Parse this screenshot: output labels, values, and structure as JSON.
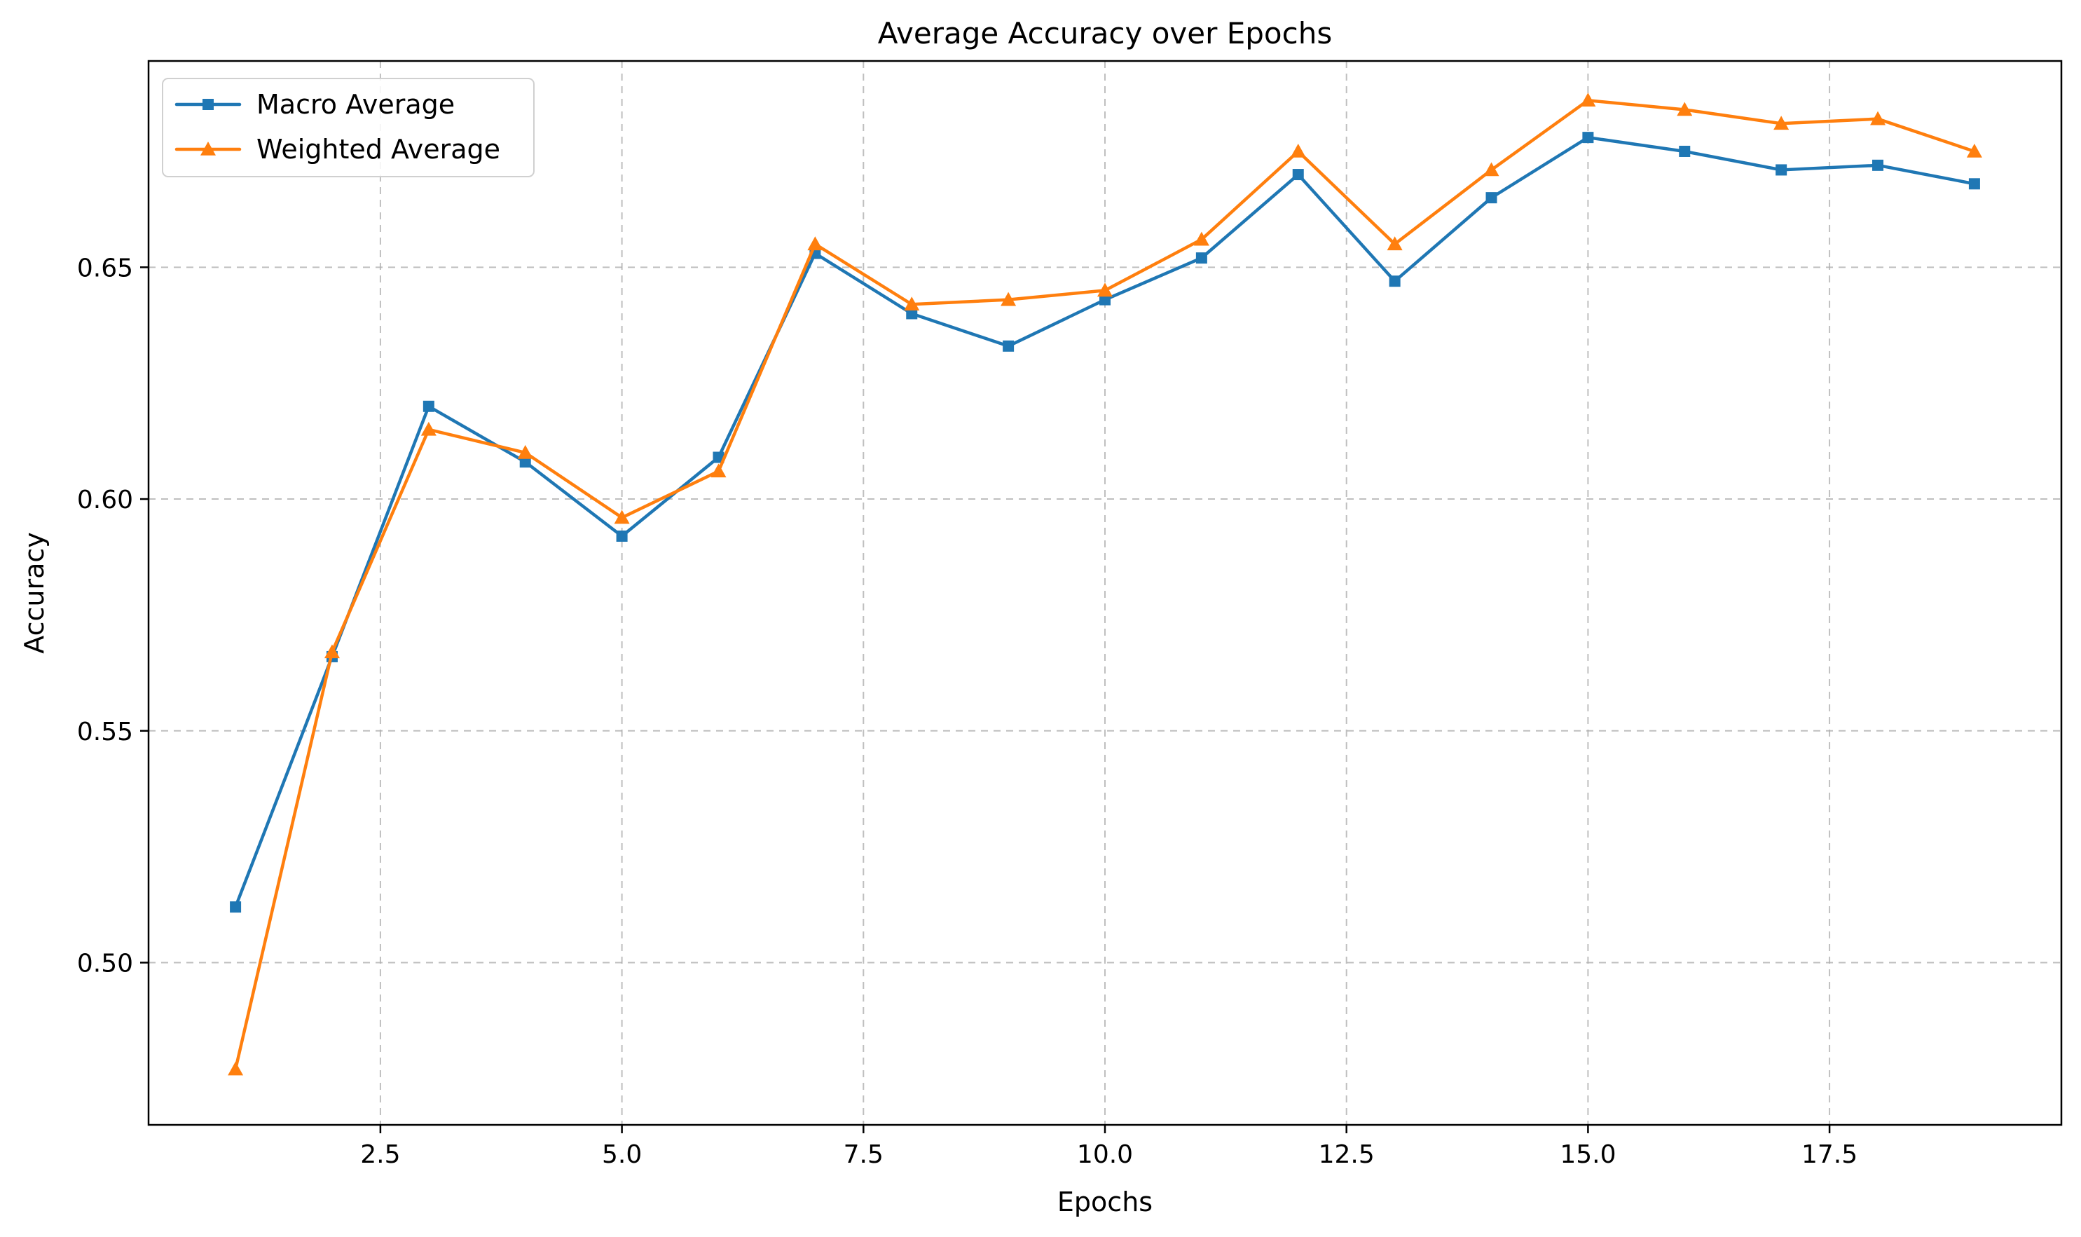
{
  "chart_data": {
    "type": "line",
    "title": "Average Accuracy over Epochs",
    "xlabel": "Epochs",
    "ylabel": "Accuracy",
    "x": [
      1,
      2,
      3,
      4,
      5,
      6,
      7,
      8,
      9,
      10,
      11,
      12,
      13,
      14,
      15,
      16,
      17,
      18,
      19
    ],
    "xlim": [
      0.1,
      19.9
    ],
    "ylim": [
      0.465,
      0.6945
    ],
    "x_ticks": [
      2.5,
      5.0,
      7.5,
      10.0,
      12.5,
      15.0,
      17.5
    ],
    "x_tick_labels": [
      "2.5",
      "5.0",
      "7.5",
      "10.0",
      "12.5",
      "15.0",
      "17.5"
    ],
    "y_ticks": [
      0.5,
      0.55,
      0.6,
      0.65
    ],
    "y_tick_labels": [
      "0.50",
      "0.55",
      "0.60",
      "0.65"
    ],
    "grid": true,
    "legend_position": "top-left",
    "series": [
      {
        "name": "Macro Average",
        "color": "#1f77b4",
        "marker": "square",
        "values": [
          0.512,
          0.566,
          0.62,
          0.608,
          0.592,
          0.609,
          0.653,
          0.64,
          0.633,
          0.643,
          0.652,
          0.67,
          0.647,
          0.665,
          0.678,
          0.675,
          0.671,
          0.672,
          0.668
        ]
      },
      {
        "name": "Weighted Average",
        "color": "#ff7f0e",
        "marker": "triangle",
        "values": [
          0.477,
          0.567,
          0.615,
          0.61,
          0.596,
          0.606,
          0.655,
          0.642,
          0.643,
          0.645,
          0.656,
          0.675,
          0.655,
          0.671,
          0.686,
          0.684,
          0.681,
          0.682,
          0.675
        ]
      }
    ]
  }
}
